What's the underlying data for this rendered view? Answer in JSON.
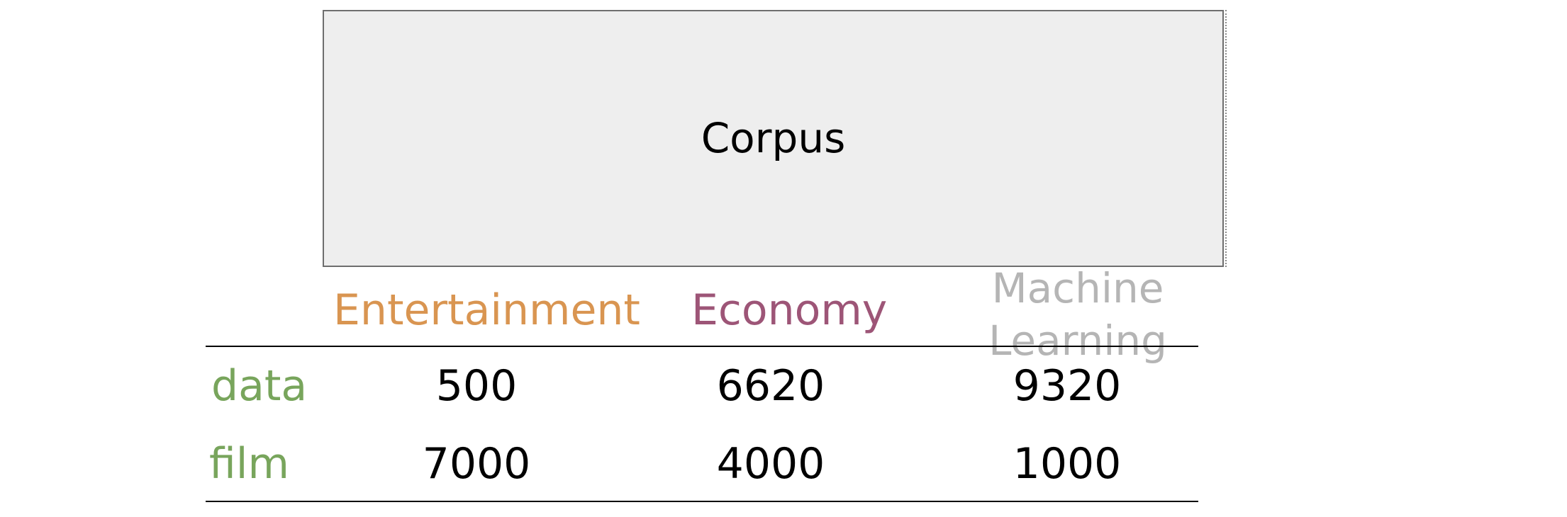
{
  "corpus": {
    "label": "Corpus"
  },
  "table": {
    "headers": [
      "Entertainment",
      "Economy",
      "Machine Learning"
    ],
    "rows": [
      {
        "label": "data",
        "values": [
          "500",
          "6620",
          "9320"
        ]
      },
      {
        "label": "film",
        "values": [
          "7000",
          "4000",
          "1000"
        ]
      }
    ]
  },
  "colors": {
    "entertainment": "#d99551",
    "economy": "#9d5577",
    "machine_learning": "#b5b5b5",
    "row_label": "#78a55c",
    "box_fill": "#eeeeee"
  }
}
